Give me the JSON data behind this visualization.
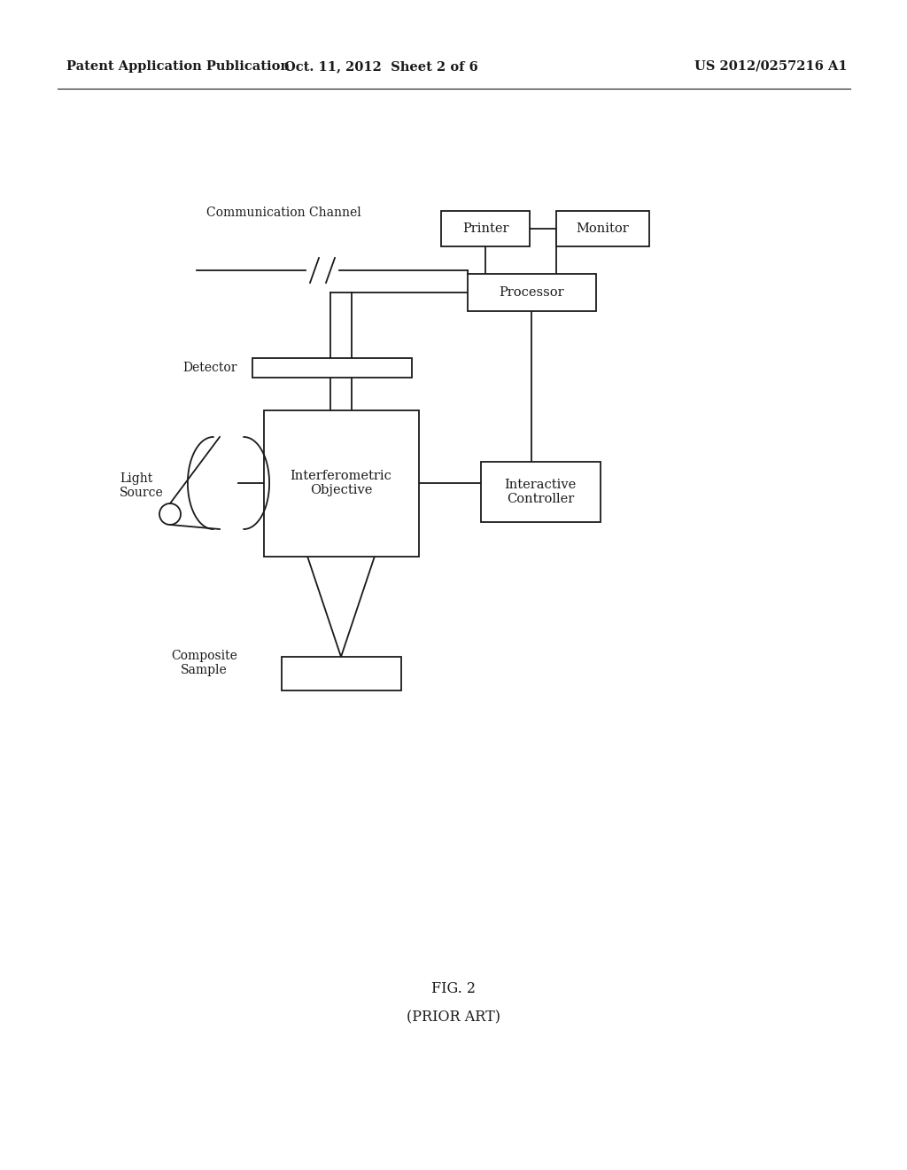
{
  "header_left": "Patent Application Publication",
  "header_center": "Oct. 11, 2012  Sheet 2 of 6",
  "header_right": "US 2012/0257216 A1",
  "fig_label": "FIG. 2",
  "fig_sublabel": "(PRIOR ART)",
  "bg_color": "#ffffff",
  "line_color": "#1a1a1a"
}
